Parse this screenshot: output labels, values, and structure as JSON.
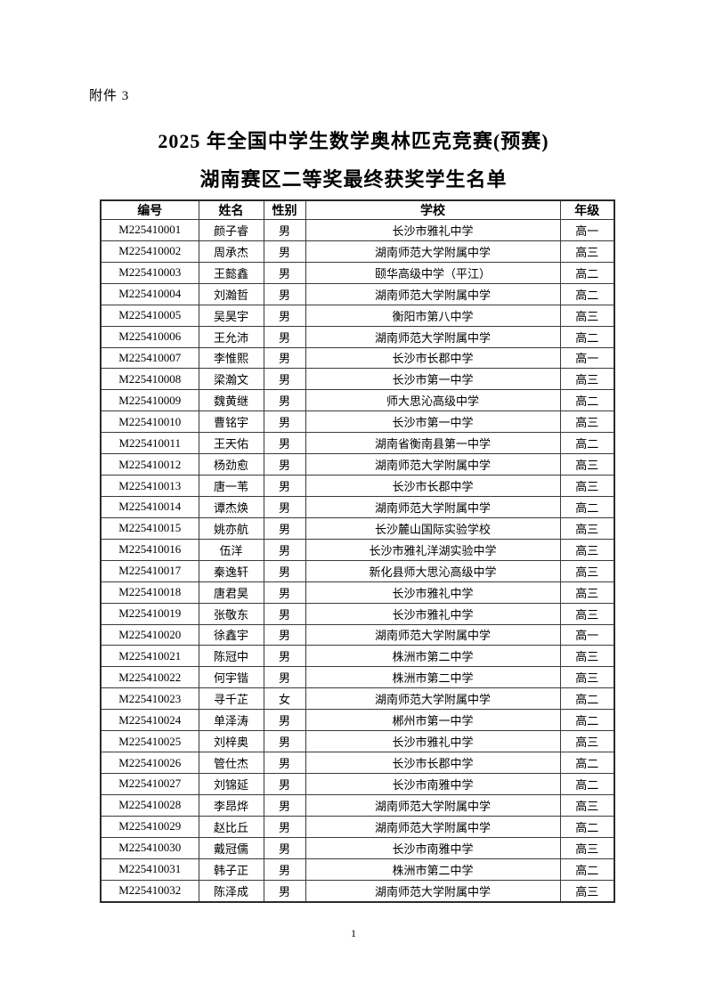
{
  "page": {
    "attachment_label": "附件 3",
    "title_line1": "2025 年全国中学生数学奥林匹克竞赛(预赛)",
    "title_line2": "湖南赛区二等奖最终获奖学生名单",
    "page_number": "1"
  },
  "colors": {
    "text": "#000000",
    "border": "#3a3a3a",
    "background": "#ffffff"
  },
  "table": {
    "column_keys": [
      "id",
      "name",
      "gender",
      "school",
      "grade"
    ],
    "headers": [
      "编号",
      "姓名",
      "性别",
      "学校",
      "年级"
    ],
    "rows": [
      [
        "M225410001",
        "颜子睿",
        "男",
        "长沙市雅礼中学",
        "高一"
      ],
      [
        "M225410002",
        "周承杰",
        "男",
        "湖南师范大学附属中学",
        "高三"
      ],
      [
        "M225410003",
        "王懿鑫",
        "男",
        "颐华高级中学（平江）",
        "高二"
      ],
      [
        "M225410004",
        "刘瀚哲",
        "男",
        "湖南师范大学附属中学",
        "高二"
      ],
      [
        "M225410005",
        "吴昊宇",
        "男",
        "衡阳市第八中学",
        "高三"
      ],
      [
        "M225410006",
        "王允沛",
        "男",
        "湖南师范大学附属中学",
        "高二"
      ],
      [
        "M225410007",
        "李惟熙",
        "男",
        "长沙市长郡中学",
        "高一"
      ],
      [
        "M225410008",
        "梁瀚文",
        "男",
        "长沙市第一中学",
        "高三"
      ],
      [
        "M225410009",
        "魏黄继",
        "男",
        "师大思沁高级中学",
        "高二"
      ],
      [
        "M225410010",
        "曹铭宇",
        "男",
        "长沙市第一中学",
        "高三"
      ],
      [
        "M225410011",
        "王天佑",
        "男",
        "湖南省衡南县第一中学",
        "高二"
      ],
      [
        "M225410012",
        "杨劲愈",
        "男",
        "湖南师范大学附属中学",
        "高三"
      ],
      [
        "M225410013",
        "唐一苇",
        "男",
        "长沙市长郡中学",
        "高三"
      ],
      [
        "M225410014",
        "谭杰焕",
        "男",
        "湖南师范大学附属中学",
        "高二"
      ],
      [
        "M225410015",
        "姚亦航",
        "男",
        "长沙麓山国际实验学校",
        "高三"
      ],
      [
        "M225410016",
        "伍洋",
        "男",
        "长沙市雅礼洋湖实验中学",
        "高三"
      ],
      [
        "M225410017",
        "秦逸轩",
        "男",
        "新化县师大思沁高级中学",
        "高三"
      ],
      [
        "M225410018",
        "唐君昊",
        "男",
        "长沙市雅礼中学",
        "高三"
      ],
      [
        "M225410019",
        "张敬东",
        "男",
        "长沙市雅礼中学",
        "高三"
      ],
      [
        "M225410020",
        "徐鑫宇",
        "男",
        "湖南师范大学附属中学",
        "高一"
      ],
      [
        "M225410021",
        "陈冠中",
        "男",
        "株洲市第二中学",
        "高三"
      ],
      [
        "M225410022",
        "何宇锴",
        "男",
        "株洲市第二中学",
        "高三"
      ],
      [
        "M225410023",
        "寻千芷",
        "女",
        "湖南师范大学附属中学",
        "高二"
      ],
      [
        "M225410024",
        "单泽涛",
        "男",
        "郴州市第一中学",
        "高二"
      ],
      [
        "M225410025",
        "刘梓奥",
        "男",
        "长沙市雅礼中学",
        "高三"
      ],
      [
        "M225410026",
        "管仕杰",
        "男",
        "长沙市长郡中学",
        "高二"
      ],
      [
        "M225410027",
        "刘锦延",
        "男",
        "长沙市南雅中学",
        "高二"
      ],
      [
        "M225410028",
        "李昂烨",
        "男",
        "湖南师范大学附属中学",
        "高三"
      ],
      [
        "M225410029",
        "赵比丘",
        "男",
        "湖南师范大学附属中学",
        "高二"
      ],
      [
        "M225410030",
        "戴冠儒",
        "男",
        "长沙市南雅中学",
        "高三"
      ],
      [
        "M225410031",
        "韩子正",
        "男",
        "株洲市第二中学",
        "高二"
      ],
      [
        "M225410032",
        "陈泽成",
        "男",
        "湖南师范大学附属中学",
        "高三"
      ]
    ]
  }
}
